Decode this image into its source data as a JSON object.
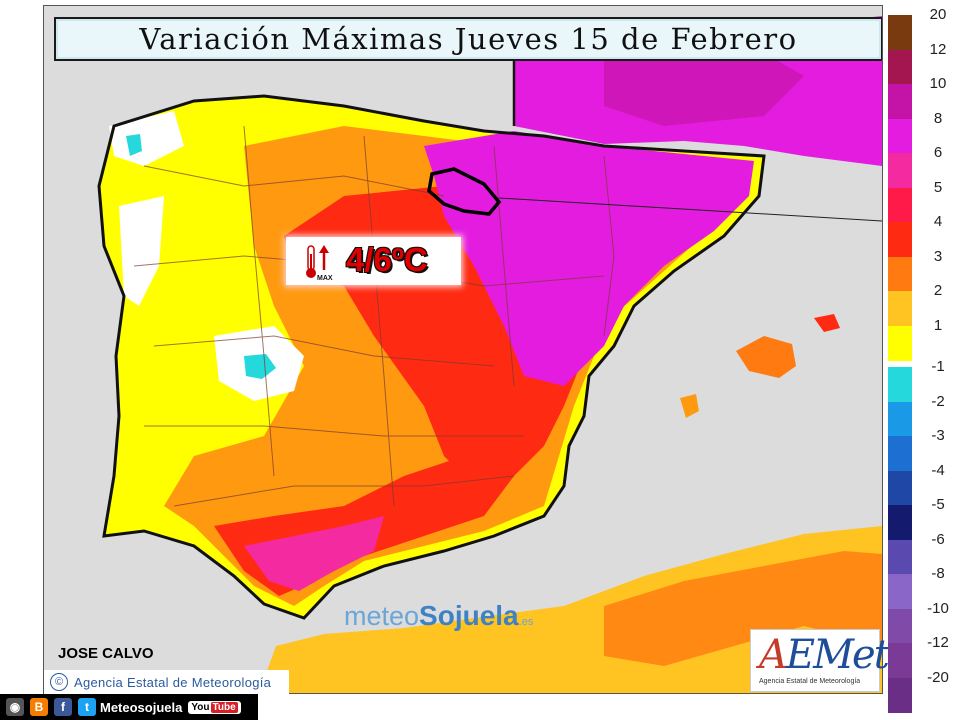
{
  "title": "Variación Máximas Jueves 15 de Febrero",
  "badge": {
    "value": "4/6ºC",
    "icon_text": "MAX",
    "icon": "thermometer-up-icon"
  },
  "author": "JOSE CALVO",
  "agency_credit": {
    "copyright": "©",
    "text": "Agencia Estatal de Meteorología"
  },
  "watermark": {
    "part1": "meteo",
    "part2": "Sojuela",
    "suffix": ".es"
  },
  "aemet_logo": {
    "text_a": "A",
    "text_rest": "EMet",
    "subtitle": "Agencia Estatal de Meteorología"
  },
  "social": {
    "label": "Meteosojuela",
    "youtube_you": "You",
    "youtube_tube": "Tube",
    "icons": [
      "instagram-icon",
      "blogger-icon",
      "facebook-icon",
      "twitter-icon"
    ]
  },
  "legend": {
    "positive": [
      {
        "label": "20",
        "color": "#7a3a10"
      },
      {
        "label": "12",
        "color": "#a4164f"
      },
      {
        "label": "10",
        "color": "#c414a8"
      },
      {
        "label": "8",
        "color": "#e41ce0"
      },
      {
        "label": "6",
        "color": "#f42aa0"
      },
      {
        "label": "5",
        "color": "#ff1a4a"
      },
      {
        "label": "4",
        "color": "#ff2a12"
      },
      {
        "label": "3",
        "color": "#ff7a10"
      },
      {
        "label": "2",
        "color": "#ffc422"
      },
      {
        "label": "1",
        "color": "#ffff00"
      }
    ],
    "negative": [
      {
        "label": "-1",
        "color": "#25d8dc"
      },
      {
        "label": "-2",
        "color": "#1a9ae6"
      },
      {
        "label": "-3",
        "color": "#1e6fd2"
      },
      {
        "label": "-4",
        "color": "#1f48a6"
      },
      {
        "label": "-5",
        "color": "#141a6e"
      },
      {
        "label": "-6",
        "color": "#5a4ab0"
      },
      {
        "label": "-8",
        "color": "#8a66c8"
      },
      {
        "label": "-10",
        "color": "#7f4aa8"
      },
      {
        "label": "-12",
        "color": "#7a3a96"
      },
      {
        "label": "-20",
        "color": "#6a2e86"
      }
    ]
  }
}
